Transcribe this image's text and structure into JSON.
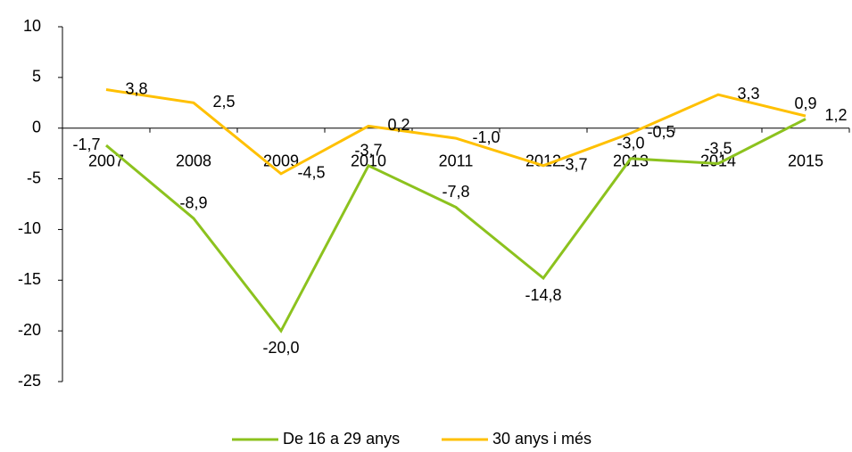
{
  "chart_data": {
    "type": "line",
    "categories": [
      "2007",
      "2008",
      "2009",
      "2010",
      "2011",
      "2012",
      "2013",
      "2014",
      "2015"
    ],
    "series": [
      {
        "name": "De 16 a 29 anys",
        "color": "#8cc21e",
        "values": [
          -1.7,
          -8.9,
          -20.0,
          -3.7,
          -7.8,
          -14.8,
          -3.0,
          -3.5,
          0.9
        ],
        "value_labels": [
          "-1,7",
          "-8,9",
          "-20,0",
          "-3,7",
          "-7,8",
          "-14,8",
          "-3,0",
          "-3,5",
          "0,9"
        ]
      },
      {
        "name": "30 anys i més",
        "color": "#ffc000",
        "values": [
          3.8,
          2.5,
          -4.5,
          0.2,
          -1.0,
          -3.7,
          -0.5,
          3.3,
          1.2
        ],
        "value_labels": [
          "3,8",
          "2,5",
          "-4,5",
          "0,2",
          "-1,0",
          "-3,7",
          "-0,5",
          "3,3",
          "1,2"
        ]
      }
    ],
    "ylim": [
      -25,
      10
    ],
    "yticks": [
      -25,
      -20,
      -15,
      -10,
      -5,
      0,
      5,
      10
    ],
    "grid": false,
    "legend": "bottom"
  }
}
